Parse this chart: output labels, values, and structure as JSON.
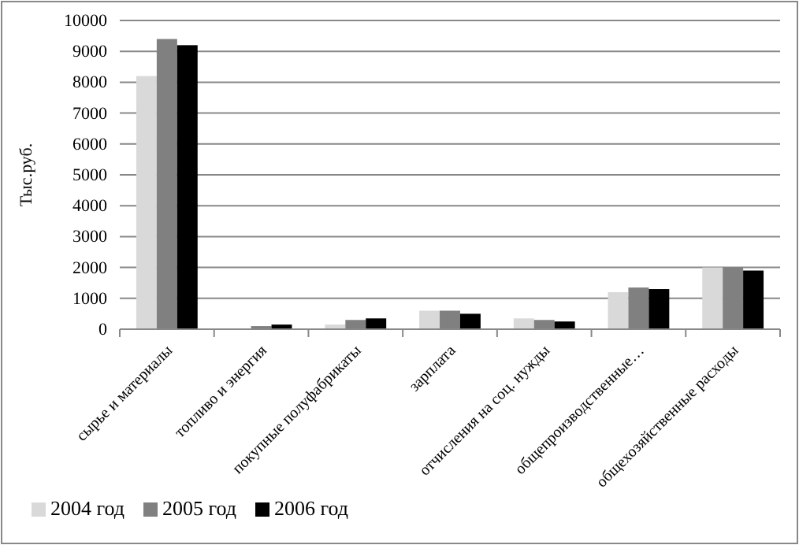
{
  "chart_data": {
    "type": "bar",
    "ylabel": "Тыс.руб.",
    "categories": [
      "сырье и материалы",
      "топливо и энергия",
      "покупные полуфабрикаты",
      "зарплата",
      "отчисления на соц. нужды",
      "общепроизводственные…",
      "общехозяйственные расходы"
    ],
    "series": [
      {
        "name": "2004 год",
        "color": "#d9d9d9",
        "values": [
          8200,
          0,
          150,
          600,
          350,
          1200,
          2000
        ]
      },
      {
        "name": "2005 год",
        "color": "#808080",
        "values": [
          9400,
          100,
          300,
          600,
          300,
          1350,
          2000
        ]
      },
      {
        "name": "2006 год",
        "color": "#000000",
        "values": [
          9200,
          150,
          350,
          500,
          250,
          1300,
          1900
        ]
      }
    ],
    "ylim": [
      0,
      10000
    ],
    "yticks": [
      0,
      1000,
      2000,
      3000,
      4000,
      5000,
      6000,
      7000,
      8000,
      9000,
      10000
    ],
    "grid": "y",
    "legend": "bottom left"
  }
}
